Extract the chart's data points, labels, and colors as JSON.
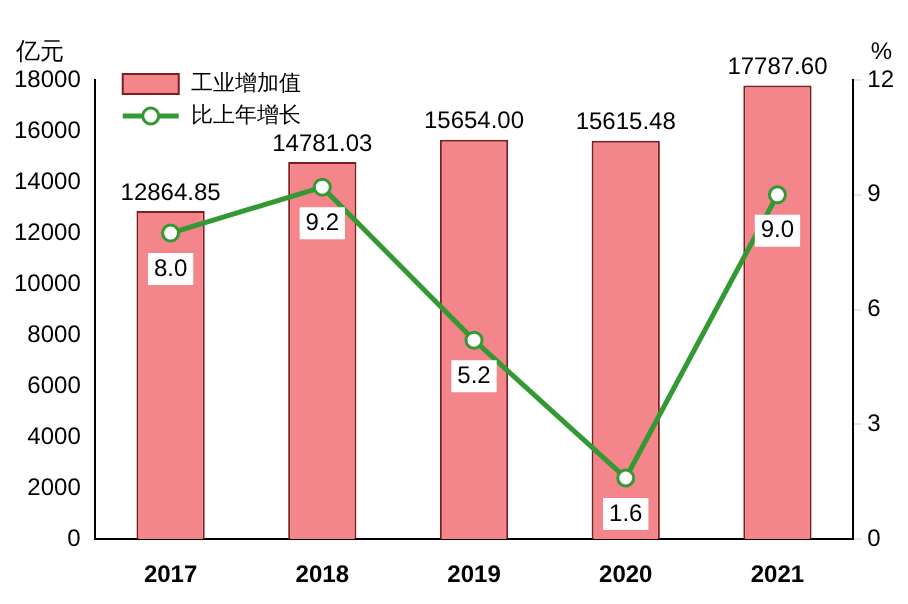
{
  "chart_data": {
    "type": "bar",
    "ylabel": "亿元",
    "y2label": "%",
    "categories": [
      "2017",
      "2018",
      "2019",
      "2020",
      "2021"
    ],
    "series": [
      {
        "name": "工业增加值",
        "color": "#f4858a",
        "values": [
          12864.85,
          14781.03,
          15654.0,
          15615.48,
          17787.6
        ],
        "value_labels": [
          "12864.85",
          "14781.03",
          "15654.00",
          "15615.48",
          "17787.60"
        ]
      },
      {
        "name": "比上年增长",
        "type": "line",
        "axis": "y2",
        "color": "#339933",
        "values": [
          8.0,
          9.2,
          5.2,
          1.6,
          9.0
        ],
        "value_labels": [
          "8.0",
          "9.2",
          "5.2",
          "1.6",
          "9.0"
        ]
      }
    ],
    "ylim": [
      0,
      18000
    ],
    "yticks": [
      0,
      2000,
      4000,
      6000,
      8000,
      10000,
      12000,
      14000,
      16000,
      18000
    ],
    "y2lim": [
      0,
      12
    ],
    "y2ticks": [
      0,
      3,
      6,
      9,
      12
    ],
    "grid": false,
    "legend": "top left",
    "marker": "circle",
    "line_style": "solid"
  }
}
